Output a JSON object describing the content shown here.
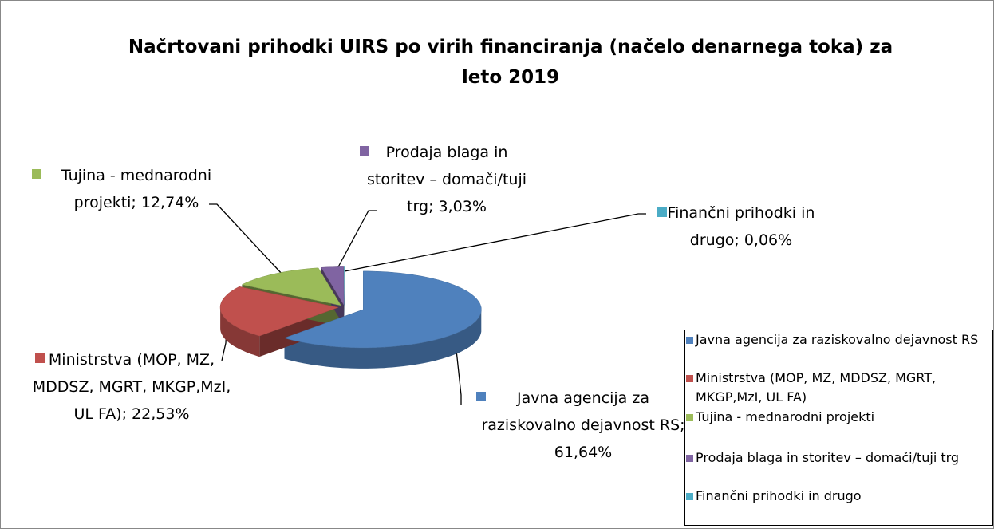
{
  "chart_data": {
    "type": "pie",
    "title": "Načrtovani prihodki UIRS po virih financiranja (načelo denarnega toka) za leto 2019",
    "categories": [
      "Javna agencija za raziskovalno dejavnost RS",
      "Ministrstva (MOP, MZ, MDDSZ, MGRT, MKGP,MzI, UL FA)",
      "Tujina - mednarodni projekti",
      "Prodaja blaga in storitev – domači/tuji trg",
      "Finančni prihodki in drugo"
    ],
    "values": [
      61.64,
      22.53,
      12.74,
      3.03,
      0.06
    ],
    "value_labels": [
      "Javna agencija za raziskovalno dejavnost RS; 61,64%",
      "Ministrstva (MOP, MZ, MDDSZ, MGRT, MKGP,MzI, UL FA); 22,53%",
      "Tujina - mednarodni projekti; 12,74%",
      "Prodaja blaga in storitev – domači/tuji trg; 3,03%",
      "Finančni prihodki in drugo; 0,06%"
    ],
    "colors": [
      "#4f81bd",
      "#c0504d",
      "#9bbb59",
      "#8064a2",
      "#4bacc6"
    ],
    "legend": "right"
  }
}
